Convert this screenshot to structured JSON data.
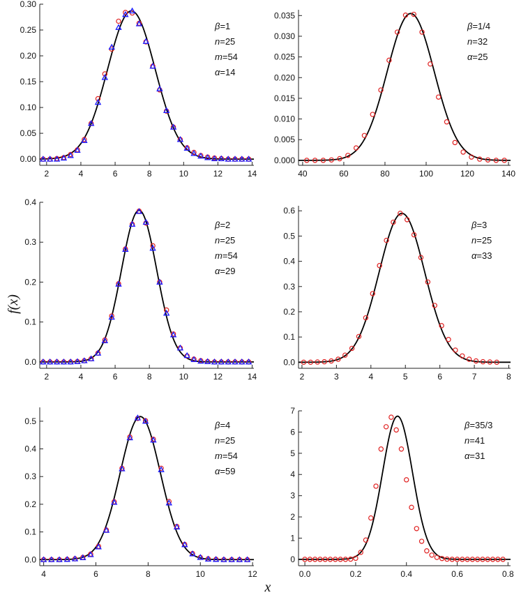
{
  "figure": {
    "ylabel": "f(x)",
    "xlabel": "x"
  },
  "chart_data": [
    {
      "type": "line",
      "panel": "top-left",
      "annotations": [
        {
          "label": "β",
          "value": "1"
        },
        {
          "label": "n",
          "value": "25"
        },
        {
          "label": "m",
          "value": "54"
        },
        {
          "label": "α",
          "value": "14"
        }
      ],
      "xlim": [
        1.6,
        14.1
      ],
      "ylim": [
        -0.012,
        0.3
      ],
      "xticks": [
        2,
        4,
        6,
        8,
        10,
        12,
        14
      ],
      "xtick_labels": [
        "2",
        "4",
        "6",
        "8",
        "10",
        "12",
        "14"
      ],
      "yticks": [
        0,
        0.05,
        0.1,
        0.15,
        0.2,
        0.25,
        0.3
      ],
      "ytick_labels": [
        "0.00",
        "0.05",
        "0.10",
        "0.15",
        "0.20",
        "0.25",
        "0.30"
      ],
      "curve": {
        "mu": 6.95,
        "sigma": 1.39,
        "peak": 0.287
      },
      "series": [
        {
          "name": "circles",
          "marker": "circle",
          "color": "#e02020",
          "x": [
            1.8,
            2.2,
            2.6,
            3.0,
            3.4,
            3.8,
            4.2,
            4.6,
            5.0,
            5.4,
            5.8,
            6.2,
            6.6,
            7.0,
            7.4,
            7.8,
            8.2,
            8.6,
            9.0,
            9.4,
            9.8,
            10.2,
            10.6,
            11.0,
            11.4,
            11.8,
            12.2,
            12.6,
            13.0,
            13.4,
            13.8
          ],
          "y": [
            0.0,
            0.0,
            0.001,
            0.003,
            0.009,
            0.018,
            0.038,
            0.069,
            0.117,
            0.165,
            0.213,
            0.267,
            0.284,
            0.283,
            0.263,
            0.227,
            0.18,
            0.134,
            0.093,
            0.062,
            0.038,
            0.022,
            0.013,
            0.007,
            0.004,
            0.002,
            0.001,
            0.0,
            0.0,
            0.0,
            0.0
          ]
        },
        {
          "name": "triangles",
          "marker": "triangle",
          "color": "#1a1aff",
          "x": [
            1.8,
            2.2,
            2.6,
            3.0,
            3.4,
            3.8,
            4.2,
            4.6,
            5.0,
            5.4,
            5.8,
            6.2,
            6.6,
            7.0,
            7.4,
            7.8,
            8.2,
            8.6,
            9.0,
            9.4,
            9.8,
            10.2,
            10.6,
            11.0,
            11.4,
            11.8,
            12.2,
            12.6,
            13.0,
            13.4,
            13.8
          ],
          "y": [
            0.0,
            0.0,
            0.0,
            0.002,
            0.007,
            0.017,
            0.036,
            0.069,
            0.11,
            0.158,
            0.217,
            0.255,
            0.28,
            0.287,
            0.262,
            0.228,
            0.18,
            0.136,
            0.094,
            0.062,
            0.038,
            0.021,
            0.011,
            0.006,
            0.003,
            0.001,
            0.001,
            0.0,
            0.0,
            0.0,
            0.0
          ]
        }
      ]
    },
    {
      "type": "line",
      "panel": "top-right",
      "annotations": [
        {
          "label": "β",
          "value": "1/4"
        },
        {
          "label": "n",
          "value": "32"
        },
        {
          "label": "α",
          "value": "25"
        }
      ],
      "xlim": [
        38,
        141
      ],
      "ylim": [
        -0.0012,
        0.0364
      ],
      "xticks": [
        40,
        60,
        80,
        100,
        120,
        140
      ],
      "xtick_labels": [
        "40",
        "60",
        "80",
        "100",
        "120",
        "140"
      ],
      "yticks": [
        0,
        0.005,
        0.01,
        0.015,
        0.02,
        0.025,
        0.03,
        0.035
      ],
      "ytick_labels": [
        "0.000",
        "0.005",
        "0.010",
        "0.015",
        "0.020",
        "0.025",
        "0.030",
        "0.035"
      ],
      "curve": {
        "mu": 92.5,
        "sigma": 11.4,
        "peak": 0.0355
      },
      "series": [
        {
          "name": "circles",
          "marker": "circle",
          "color": "#e02020",
          "x": [
            42,
            46,
            50,
            54,
            58,
            62,
            66,
            70,
            74,
            78,
            82,
            86,
            90,
            94,
            98,
            102,
            106,
            110,
            114,
            118,
            122,
            126,
            130,
            134,
            138
          ],
          "y": [
            0.0,
            0.0,
            0.0,
            0.0001,
            0.0004,
            0.0012,
            0.003,
            0.006,
            0.0111,
            0.017,
            0.0242,
            0.031,
            0.0351,
            0.0353,
            0.031,
            0.0233,
            0.0153,
            0.0093,
            0.0043,
            0.002,
            0.0008,
            0.0003,
            0.0001,
            0.0,
            0.0
          ]
        }
      ]
    },
    {
      "type": "line",
      "panel": "middle-left",
      "annotations": [
        {
          "label": "β",
          "value": "2"
        },
        {
          "label": "n",
          "value": "25"
        },
        {
          "label": "m",
          "value": "54"
        },
        {
          "label": "α",
          "value": "29"
        }
      ],
      "xlim": [
        1.6,
        14.1
      ],
      "ylim": [
        -0.016,
        0.4
      ],
      "xticks": [
        2,
        4,
        6,
        8,
        10,
        12,
        14
      ],
      "xtick_labels": [
        "2",
        "4",
        "6",
        "8",
        "10",
        "12",
        "14"
      ],
      "yticks": [
        0,
        0.1,
        0.2,
        0.3,
        0.4
      ],
      "ytick_labels": [
        "0.0",
        "0.1",
        "0.2",
        "0.3",
        "0.4"
      ],
      "curve": {
        "mu": 7.4,
        "sigma": 1.03,
        "peak": 0.38
      },
      "series": [
        {
          "name": "circles",
          "marker": "circle",
          "color": "#e02020",
          "x": [
            1.8,
            2.2,
            2.6,
            3.0,
            3.4,
            3.8,
            4.2,
            4.6,
            5.0,
            5.4,
            5.8,
            6.2,
            6.6,
            7.0,
            7.4,
            7.8,
            8.2,
            8.6,
            9.0,
            9.4,
            9.8,
            10.2,
            10.6,
            11.0,
            11.4,
            11.8,
            12.2,
            12.6,
            13.0,
            13.4,
            13.8
          ],
          "y": [
            0.0,
            0.0,
            0.0,
            0.0,
            0.0,
            0.001,
            0.003,
            0.008,
            0.022,
            0.055,
            0.115,
            0.196,
            0.283,
            0.345,
            0.378,
            0.348,
            0.291,
            0.2,
            0.13,
            0.07,
            0.035,
            0.015,
            0.007,
            0.003,
            0.001,
            0.0,
            0.0,
            0.0,
            0.0,
            0.0,
            0.0
          ]
        },
        {
          "name": "triangles",
          "marker": "triangle",
          "color": "#1a1aff",
          "x": [
            1.8,
            2.2,
            2.6,
            3.0,
            3.4,
            3.8,
            4.2,
            4.6,
            5.0,
            5.4,
            5.8,
            6.2,
            6.6,
            7.0,
            7.4,
            7.8,
            8.2,
            8.6,
            9.0,
            9.4,
            9.8,
            10.2,
            10.6,
            11.0,
            11.4,
            11.8,
            12.2,
            12.6,
            13.0,
            13.4,
            13.8
          ],
          "y": [
            0.0,
            0.0,
            0.0,
            0.0,
            0.0,
            0.001,
            0.003,
            0.008,
            0.022,
            0.053,
            0.112,
            0.195,
            0.282,
            0.345,
            0.377,
            0.35,
            0.285,
            0.2,
            0.122,
            0.068,
            0.035,
            0.016,
            0.006,
            0.002,
            0.001,
            0.0,
            0.0,
            0.0,
            0.0,
            0.0,
            0.0
          ]
        }
      ]
    },
    {
      "type": "line",
      "panel": "middle-right",
      "annotations": [
        {
          "label": "β",
          "value": "3"
        },
        {
          "label": "n",
          "value": "25"
        },
        {
          "label": "α",
          "value": "33"
        }
      ],
      "xlim": [
        1.9,
        8.05
      ],
      "ylim": [
        -0.024,
        0.62
      ],
      "xticks": [
        2,
        3,
        4,
        5,
        6,
        7,
        8
      ],
      "xtick_labels": [
        "2",
        "3",
        "4",
        "5",
        "6",
        "7",
        "8"
      ],
      "yticks": [
        0,
        0.1,
        0.2,
        0.3,
        0.4,
        0.5,
        0.6
      ],
      "ytick_labels": [
        "0.0",
        "0.1",
        "0.2",
        "0.3",
        "0.4",
        "0.5",
        "0.6"
      ],
      "curve": {
        "mu": 4.9,
        "sigma": 0.66,
        "peak": 0.59
      },
      "series": [
        {
          "name": "circles",
          "marker": "circle",
          "color": "#e02020",
          "x": [
            2.05,
            2.25,
            2.45,
            2.65,
            2.85,
            3.05,
            3.25,
            3.45,
            3.65,
            3.85,
            4.05,
            4.25,
            4.45,
            4.65,
            4.85,
            5.05,
            5.25,
            5.45,
            5.65,
            5.85,
            6.05,
            6.25,
            6.45,
            6.65,
            6.85,
            7.05,
            7.25,
            7.45,
            7.65
          ],
          "y": [
            0.0,
            0.0,
            0.001,
            0.002,
            0.005,
            0.012,
            0.028,
            0.055,
            0.102,
            0.176,
            0.272,
            0.383,
            0.483,
            0.555,
            0.59,
            0.565,
            0.505,
            0.415,
            0.318,
            0.225,
            0.145,
            0.09,
            0.048,
            0.025,
            0.012,
            0.005,
            0.002,
            0.001,
            0.0
          ]
        }
      ]
    },
    {
      "type": "line",
      "panel": "bottom-left",
      "annotations": [
        {
          "label": "β",
          "value": "4"
        },
        {
          "label": "n",
          "value": "25"
        },
        {
          "label": "m",
          "value": "54"
        },
        {
          "label": "α",
          "value": "59"
        }
      ],
      "xlim": [
        3.85,
        12.05
      ],
      "ylim": [
        -0.022,
        0.55
      ],
      "xticks": [
        4,
        6,
        8,
        10,
        12
      ],
      "xtick_labels": [
        "4",
        "6",
        "8",
        "10",
        "12"
      ],
      "yticks": [
        0,
        0.1,
        0.2,
        0.3,
        0.4,
        0.5
      ],
      "ytick_labels": [
        "0.0",
        "0.1",
        "0.2",
        "0.3",
        "0.4",
        "0.5"
      ],
      "curve": {
        "mu": 7.7,
        "sigma": 0.77,
        "peak": 0.517
      },
      "series": [
        {
          "name": "circles",
          "marker": "circle",
          "color": "#e02020",
          "x": [
            4.0,
            4.3,
            4.6,
            4.9,
            5.2,
            5.5,
            5.8,
            6.1,
            6.4,
            6.7,
            7.0,
            7.3,
            7.6,
            7.9,
            8.2,
            8.5,
            8.8,
            9.1,
            9.4,
            9.7,
            10.0,
            10.3,
            10.6,
            10.9,
            11.2,
            11.5,
            11.8
          ],
          "y": [
            0.0,
            0.0,
            0.0,
            0.001,
            0.003,
            0.008,
            0.02,
            0.048,
            0.107,
            0.209,
            0.33,
            0.443,
            0.51,
            0.502,
            0.435,
            0.33,
            0.21,
            0.12,
            0.055,
            0.022,
            0.008,
            0.003,
            0.001,
            0.0,
            0.0,
            0.0,
            0.0
          ]
        },
        {
          "name": "triangles",
          "marker": "triangle",
          "color": "#1a1aff",
          "x": [
            4.0,
            4.3,
            4.6,
            4.9,
            5.2,
            5.5,
            5.8,
            6.1,
            6.4,
            6.7,
            7.0,
            7.3,
            7.6,
            7.9,
            8.2,
            8.5,
            8.8,
            9.1,
            9.4,
            9.7,
            10.0,
            10.3,
            10.6,
            10.9,
            11.2,
            11.5,
            11.8
          ],
          "y": [
            0.0,
            0.0,
            0.0,
            0.001,
            0.003,
            0.007,
            0.018,
            0.046,
            0.106,
            0.207,
            0.328,
            0.44,
            0.512,
            0.5,
            0.432,
            0.325,
            0.205,
            0.118,
            0.054,
            0.021,
            0.008,
            0.002,
            0.001,
            0.0,
            0.0,
            0.0,
            0.0
          ]
        }
      ]
    },
    {
      "type": "line",
      "panel": "bottom-right",
      "annotations": [
        {
          "label": "β",
          "value": "35/3"
        },
        {
          "label": "n",
          "value": "41"
        },
        {
          "label": "α",
          "value": "31"
        }
      ],
      "xlim": [
        -0.025,
        0.81
      ],
      "ylim": [
        -0.3,
        7.0
      ],
      "xticks": [
        0,
        0.2,
        0.4,
        0.6,
        0.8
      ],
      "xtick_labels": [
        "0.0",
        "0.2",
        "0.4",
        "0.6",
        "0.8"
      ],
      "yticks": [
        0,
        1,
        2,
        3,
        4,
        5,
        6,
        7
      ],
      "ytick_labels": [
        "0",
        "1",
        "2",
        "3",
        "4",
        "5",
        "6",
        "7"
      ],
      "curve": {
        "mu": 0.365,
        "sigma": 0.059,
        "peak": 6.75
      },
      "series": [
        {
          "name": "circles",
          "marker": "circle",
          "color": "#e02020",
          "x": [
            0.0,
            0.02,
            0.04,
            0.06,
            0.08,
            0.1,
            0.12,
            0.14,
            0.16,
            0.18,
            0.2,
            0.22,
            0.24,
            0.26,
            0.28,
            0.3,
            0.32,
            0.34,
            0.36,
            0.38,
            0.4,
            0.42,
            0.44,
            0.46,
            0.48,
            0.5,
            0.52,
            0.54,
            0.56,
            0.58,
            0.6,
            0.62,
            0.64,
            0.66,
            0.68,
            0.7,
            0.72,
            0.74,
            0.76,
            0.78
          ],
          "y": [
            0,
            0,
            0,
            0,
            0,
            0,
            0,
            0,
            0,
            0.01,
            0.05,
            0.33,
            0.91,
            1.95,
            3.45,
            5.2,
            6.25,
            6.7,
            6.1,
            5.2,
            3.75,
            2.45,
            1.45,
            0.85,
            0.4,
            0.2,
            0.09,
            0.04,
            0.01,
            0,
            0,
            0,
            0,
            0,
            0,
            0,
            0,
            0,
            0,
            0
          ]
        }
      ]
    }
  ]
}
